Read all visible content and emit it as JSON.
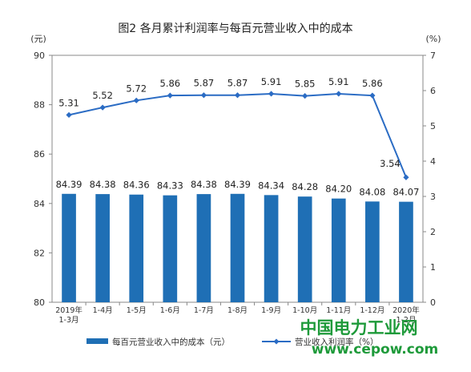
{
  "chart_data": {
    "type": "bar",
    "title": "图2  各月累计利润率与每百元营业收入中的成本",
    "left_unit": "(元)",
    "right_unit": "(%)",
    "categories": [
      [
        "2019年",
        "1-3月"
      ],
      [
        "1-4月"
      ],
      [
        "1-5月"
      ],
      [
        "1-6月"
      ],
      [
        "1-7月"
      ],
      [
        "1-8月"
      ],
      [
        "1-9月"
      ],
      [
        "1-10月"
      ],
      [
        "1-11月"
      ],
      [
        "1-12月"
      ],
      [
        "2020年",
        "1-2月"
      ]
    ],
    "ylim_left": [
      80,
      90
    ],
    "yticks_left": [
      "80",
      "82",
      "84",
      "86",
      "88",
      "90"
    ],
    "ylim_right": [
      0,
      7
    ],
    "yticks_right": [
      "0",
      "1",
      "2",
      "3",
      "4",
      "5",
      "6",
      "7"
    ],
    "series": [
      {
        "name": "每百元营业收入中的成本（元）",
        "type": "bar",
        "axis": "left",
        "color": "#1f6fb5",
        "values": [
          84.39,
          84.38,
          84.36,
          84.33,
          84.38,
          84.39,
          84.34,
          84.28,
          84.2,
          84.08,
          84.07
        ],
        "labels": [
          "84.39",
          "84.38",
          "84.36",
          "84.33",
          "84.38",
          "84.39",
          "84.34",
          "84.28",
          "84.20",
          "84.08",
          "84.07"
        ]
      },
      {
        "name": "营业收入利润率（%）",
        "type": "line",
        "axis": "right",
        "color": "#2b6cc4",
        "values": [
          5.31,
          5.52,
          5.72,
          5.86,
          5.87,
          5.87,
          5.91,
          5.85,
          5.91,
          5.86,
          3.54
        ],
        "labels": [
          "5.31",
          "5.52",
          "5.72",
          "5.86",
          "5.87",
          "5.87",
          "5.91",
          "5.85",
          "5.91",
          "5.86",
          "3.54"
        ]
      }
    ],
    "grid": false,
    "legend_position": "bottom"
  },
  "watermark": {
    "line1": "中国电力工业网",
    "line2": "www.cepow.com"
  }
}
